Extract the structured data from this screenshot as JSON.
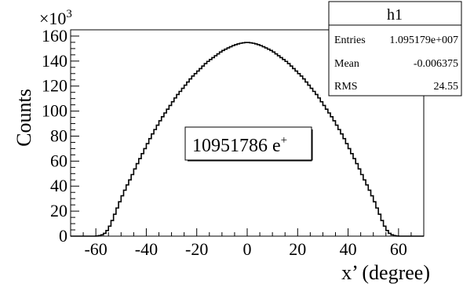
{
  "chart_data": {
    "type": "histogram",
    "xlabel": "x’ (degree)",
    "ylabel": "Counts",
    "y_multiplier_base": "×10",
    "y_multiplier_exp": "3",
    "xlim": [
      -70,
      70
    ],
    "ylim": [
      0,
      165000
    ],
    "x_ticks": [
      -60,
      -40,
      -20,
      0,
      20,
      40,
      60
    ],
    "x_tick_labels": [
      "-60",
      "-40",
      "-20",
      "0",
      "20",
      "40",
      "60"
    ],
    "y_ticks": [
      0,
      20000,
      40000,
      60000,
      80000,
      100000,
      120000,
      140000,
      160000
    ],
    "y_tick_labels": [
      "0",
      "20",
      "40",
      "60",
      "80",
      "100",
      "120",
      "140",
      "160"
    ],
    "bin_width": 1,
    "distribution_points": [
      [
        -60,
        0
      ],
      [
        -59,
        200
      ],
      [
        -58,
        600
      ],
      [
        -57,
        1500
      ],
      [
        -56,
        3000
      ],
      [
        -55,
        6000
      ],
      [
        -54,
        10000
      ],
      [
        -53,
        15000
      ],
      [
        -52,
        20000
      ],
      [
        -51,
        25000
      ],
      [
        -50,
        30000
      ],
      [
        -48,
        39000
      ],
      [
        -46,
        47000
      ],
      [
        -44,
        56000
      ],
      [
        -42,
        64000
      ],
      [
        -40,
        72000
      ],
      [
        -38,
        80000
      ],
      [
        -36,
        87000
      ],
      [
        -34,
        94000
      ],
      [
        -32,
        100000
      ],
      [
        -30,
        106000
      ],
      [
        -28,
        112000
      ],
      [
        -26,
        117000
      ],
      [
        -24,
        122000
      ],
      [
        -22,
        127000
      ],
      [
        -20,
        131000
      ],
      [
        -18,
        135000
      ],
      [
        -16,
        139000
      ],
      [
        -14,
        142000
      ],
      [
        -12,
        145000
      ],
      [
        -10,
        148000
      ],
      [
        -8,
        150000
      ],
      [
        -6,
        152000
      ],
      [
        -4,
        153500
      ],
      [
        -2,
        154500
      ],
      [
        0,
        155000
      ],
      [
        2,
        154500
      ],
      [
        4,
        153500
      ],
      [
        6,
        152000
      ],
      [
        8,
        150000
      ],
      [
        10,
        148000
      ],
      [
        12,
        145000
      ],
      [
        14,
        142000
      ],
      [
        16,
        139000
      ],
      [
        18,
        135000
      ],
      [
        20,
        131000
      ],
      [
        22,
        127000
      ],
      [
        24,
        122000
      ],
      [
        26,
        117000
      ],
      [
        28,
        112000
      ],
      [
        30,
        106000
      ],
      [
        32,
        100000
      ],
      [
        34,
        94000
      ],
      [
        36,
        87000
      ],
      [
        38,
        80000
      ],
      [
        40,
        72000
      ],
      [
        42,
        64000
      ],
      [
        44,
        56000
      ],
      [
        46,
        47000
      ],
      [
        48,
        39000
      ],
      [
        50,
        30000
      ],
      [
        51,
        25000
      ],
      [
        52,
        20000
      ],
      [
        53,
        15000
      ],
      [
        54,
        10000
      ],
      [
        55,
        6000
      ],
      [
        56,
        3000
      ],
      [
        57,
        1500
      ],
      [
        58,
        600
      ],
      [
        59,
        200
      ],
      [
        60,
        0
      ]
    ],
    "grid": false,
    "legend": "none"
  },
  "stats": {
    "title": "h1",
    "rows": [
      {
        "label": "Entries",
        "value": "1.095179e+007"
      },
      {
        "label": "Mean",
        "value": "-0.006375"
      },
      {
        "label": "RMS",
        "value": "24.55"
      }
    ]
  },
  "annotation": {
    "text": "10951786 e",
    "superscript": "+"
  },
  "colors": {
    "line": "#000000",
    "background": "#ffffff"
  }
}
